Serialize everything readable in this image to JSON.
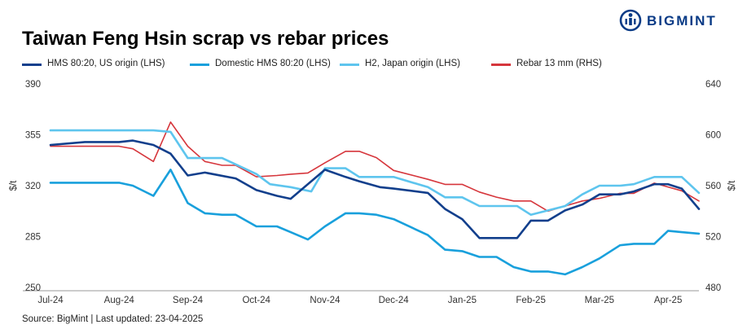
{
  "header": {
    "title": "Taiwan Feng Hsin scrap vs rebar prices",
    "brand": "BIGMINT"
  },
  "footer": {
    "source": "Source: BigMint |  Last updated: 23-04-2025"
  },
  "colors": {
    "hms_us": "#123f8c",
    "domestic": "#19a0dc",
    "h2_japan": "#5ec5ee",
    "rebar": "#d6363c",
    "brand": "#0a3b86"
  },
  "chart_data": {
    "type": "line",
    "title": "Taiwan Feng Hsin scrap vs rebar prices",
    "xlabel": "",
    "ylabel": "$/t",
    "y2label": "$/t",
    "legend_position": "top",
    "grid": false,
    "x_ticks": [
      "Jul-24",
      "Aug-24",
      "Sep-24",
      "Oct-24",
      "Nov-24",
      "Dec-24",
      "Jan-25",
      "Feb-25",
      "Mar-25",
      "Apr-25"
    ],
    "y_left": {
      "ylim": [
        250,
        390
      ],
      "ticks": [
        "250",
        "285",
        "320",
        "355",
        "390"
      ]
    },
    "y_right": {
      "ylim": [
        480,
        640
      ],
      "ticks": [
        "480",
        "520",
        "560",
        "600",
        "640"
      ]
    },
    "x_range": [
      0,
      9.45
    ],
    "series": [
      {
        "name": "HMS 80:20, US origin (LHS)",
        "axis": "left",
        "color": "#123f8c",
        "x": [
          0,
          0.5,
          1.0,
          1.2,
          1.5,
          1.75,
          2.0,
          2.25,
          2.7,
          3.0,
          3.3,
          3.5,
          3.8,
          4.0,
          4.3,
          4.5,
          4.8,
          5.0,
          5.5,
          5.75,
          6.0,
          6.25,
          6.5,
          6.8,
          7.0,
          7.25,
          7.5,
          7.75,
          8.0,
          8.3,
          8.5,
          8.8,
          9.0,
          9.2,
          9.45
        ],
        "y": [
          348,
          350,
          350,
          351,
          348,
          342,
          327,
          329,
          325,
          317,
          313,
          311,
          323,
          331,
          326,
          323,
          319,
          318,
          315,
          304,
          297,
          284,
          284,
          284,
          296,
          296,
          303,
          307,
          314,
          314,
          316,
          321,
          321,
          318,
          304
        ]
      },
      {
        "name": "Domestic HMS 80:20 (LHS)",
        "axis": "left",
        "color": "#19a0dc",
        "x": [
          0,
          0.5,
          1.0,
          1.2,
          1.5,
          1.75,
          2.0,
          2.25,
          2.5,
          2.7,
          3.0,
          3.3,
          3.5,
          3.75,
          4.0,
          4.3,
          4.5,
          4.75,
          5.0,
          5.5,
          5.75,
          6.0,
          6.25,
          6.5,
          6.75,
          7.0,
          7.25,
          7.5,
          7.75,
          8.0,
          8.3,
          8.5,
          8.8,
          9.0,
          9.2,
          9.45
        ],
        "y": [
          322,
          322,
          322,
          320,
          313,
          331,
          308,
          301,
          300,
          300,
          292,
          292,
          288,
          283,
          292,
          301,
          301,
          300,
          297,
          286,
          276,
          275,
          271,
          271,
          264,
          261,
          261,
          259,
          264,
          270,
          279,
          280,
          280,
          289,
          288,
          287
        ]
      },
      {
        "name": "H2, Japan origin (LHS)",
        "axis": "left",
        "color": "#5ec5ee",
        "x": [
          0,
          0.5,
          1.0,
          1.2,
          1.5,
          1.75,
          2.0,
          2.25,
          2.5,
          3.0,
          3.2,
          3.5,
          3.8,
          4.0,
          4.3,
          4.5,
          4.8,
          5.0,
          5.5,
          5.75,
          6.0,
          6.25,
          6.5,
          6.8,
          7.0,
          7.25,
          7.5,
          7.75,
          8.0,
          8.3,
          8.5,
          8.8,
          9.0,
          9.2,
          9.45
        ],
        "y": [
          358,
          358,
          358,
          358,
          358,
          357,
          339,
          339,
          339,
          328,
          321,
          319,
          316,
          332,
          332,
          326,
          326,
          326,
          319,
          312,
          312,
          306,
          306,
          306,
          300,
          303,
          306,
          314,
          320,
          320,
          321,
          326,
          326,
          326,
          315
        ]
      },
      {
        "name": "Rebar 13 mm (RHS)",
        "axis": "right",
        "color": "#d6363c",
        "x": [
          0,
          0.5,
          1.0,
          1.2,
          1.5,
          1.75,
          2.0,
          2.25,
          2.5,
          2.7,
          3.0,
          3.3,
          3.5,
          3.75,
          4.0,
          4.3,
          4.5,
          4.75,
          5.0,
          5.5,
          5.75,
          6.0,
          6.25,
          6.5,
          6.75,
          7.0,
          7.25,
          7.5,
          7.75,
          8.0,
          8.3,
          8.5,
          8.8,
          9.0,
          9.2,
          9.45
        ],
        "y": [
          591,
          591,
          591,
          589,
          579,
          610,
          591,
          579,
          576,
          576,
          567,
          568,
          569,
          570,
          578,
          587,
          587,
          582,
          572,
          565,
          561,
          561,
          555,
          551,
          548,
          548,
          540,
          544,
          548,
          550,
          554,
          554,
          562,
          559,
          556,
          548
        ]
      }
    ]
  }
}
